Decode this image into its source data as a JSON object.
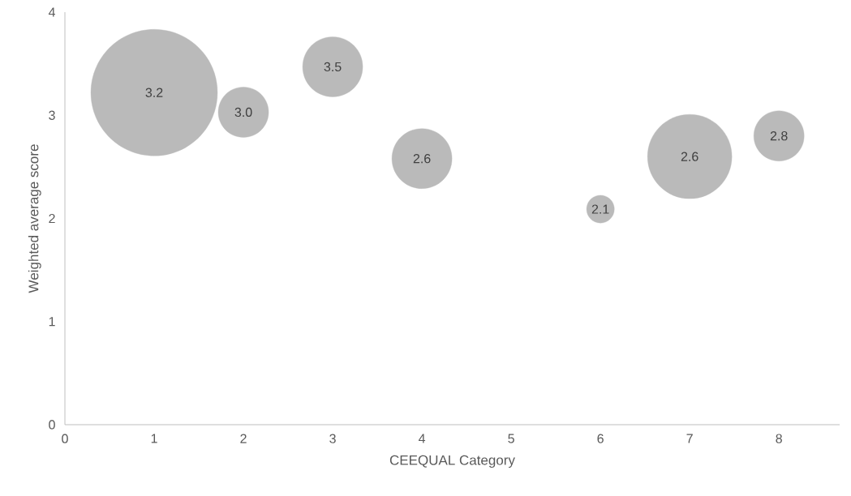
{
  "chart_data": {
    "type": "bubble",
    "xlabel": "CEEQUAL Category",
    "ylabel": "Weighted average score",
    "x": [
      1,
      2,
      3,
      4,
      6,
      7,
      8
    ],
    "values": [
      3.22,
      3.03,
      3.47,
      2.58,
      2.09,
      2.6,
      2.8
    ],
    "sizes": [
      1,
      0.158,
      0.225,
      0.225,
      0.048,
      0.444,
      0.158
    ],
    "value_labels": [
      "3.2",
      "3.0",
      "3.5",
      "2.6",
      "2.1",
      "2.6",
      "2.8"
    ],
    "color": "#bababa",
    "xlim": [
      0,
      8.68
    ],
    "xticks": [
      0,
      1,
      2,
      3,
      4,
      5,
      6,
      7,
      8
    ],
    "ylim": [
      0,
      4
    ],
    "yticks": [
      0,
      1,
      2,
      3,
      4
    ],
    "grid": false
  }
}
